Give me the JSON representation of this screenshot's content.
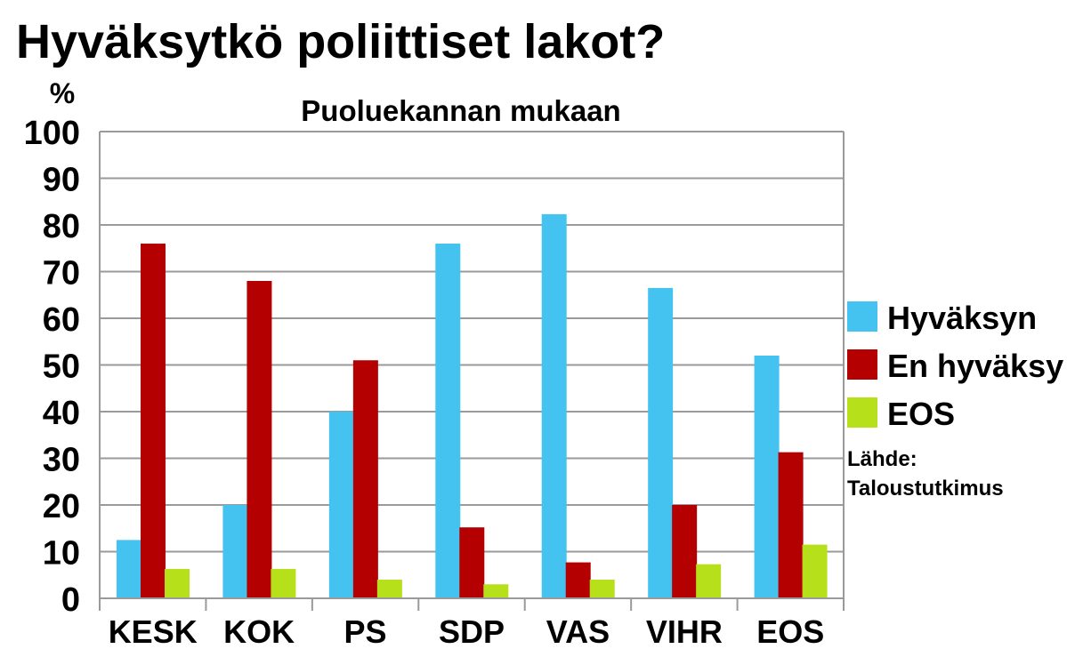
{
  "chart_data": {
    "type": "bar",
    "title": "Hyväksytkö poliittiset lakot?",
    "subtitle": "Puoluekannan mukaan",
    "ylabel": "%",
    "xlabel": "",
    "ylim": [
      0,
      100
    ],
    "yticks": [
      0,
      10,
      20,
      30,
      40,
      50,
      60,
      70,
      80,
      90,
      100
    ],
    "grid": true,
    "legend_position": "right",
    "categories": [
      "KESK",
      "KOK",
      "PS",
      "SDP",
      "VAS",
      "VIHR",
      "EOS"
    ],
    "series": [
      {
        "name": "Hyväksyn",
        "color": "#45c3f0",
        "values": [
          12.5,
          20,
          40,
          76,
          82.3,
          66.5,
          52
        ]
      },
      {
        "name": "En hyväksy",
        "color": "#b40000",
        "values": [
          76,
          68,
          51,
          15.2,
          7.7,
          20,
          31.3
        ]
      },
      {
        "name": "EOS",
        "color": "#b6e01a",
        "values": [
          6.3,
          6.3,
          4,
          3,
          4,
          7.3,
          11.5
        ]
      }
    ],
    "source_label": "Lähde:",
    "source_value": "Taloustutkimus"
  }
}
